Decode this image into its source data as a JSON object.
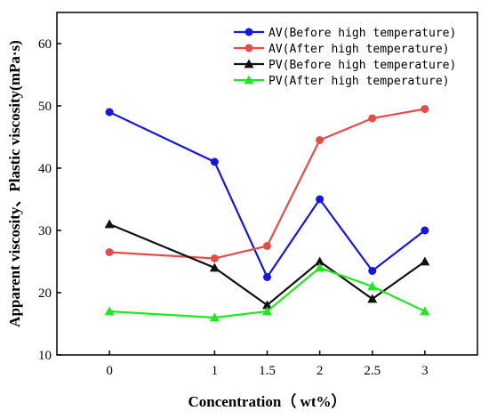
{
  "chart_data": {
    "type": "line",
    "xlabel": "Concentration（ wt%）",
    "ylabel": "Apparent viscosity、Plastic viscosity(mPa·s)",
    "x": [
      0,
      1,
      1.5,
      2,
      2.5,
      3
    ],
    "x_tick_labels": [
      "0",
      "1",
      "1.5",
      "2",
      "2.5",
      "3"
    ],
    "y_ticks": [
      10,
      20,
      30,
      40,
      50,
      60
    ],
    "ylim": [
      10,
      65
    ],
    "grid": false,
    "legend_position": "top-right",
    "series": [
      {
        "name": "AV(Before high temperature)",
        "color": "#1515e6",
        "marker": "circle",
        "values": [
          49,
          41,
          22.5,
          35,
          23.5,
          30
        ]
      },
      {
        "name": "AV(After high temperature)",
        "color": "#e84a4a",
        "marker": "circle",
        "values": [
          26.5,
          25.5,
          27.5,
          44.5,
          48,
          49.5
        ]
      },
      {
        "name": "PV(Before high temperature)",
        "color": "#111111",
        "marker": "triangle",
        "values": [
          31,
          24,
          18,
          25,
          19,
          25
        ]
      },
      {
        "name": "PV(After high temperature)",
        "color": "#1ee81e",
        "marker": "triangle",
        "values": [
          17,
          16,
          17,
          24,
          21,
          17
        ]
      }
    ]
  }
}
